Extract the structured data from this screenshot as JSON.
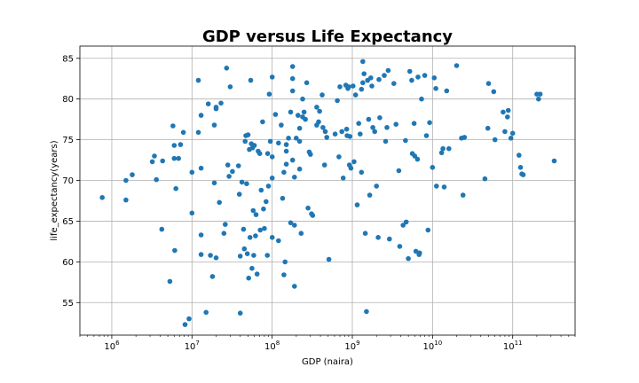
{
  "chart_data": {
    "type": "scatter",
    "title": "GDP versus Life Expectancy",
    "xlabel": "GDP (naira)",
    "ylabel": "life_expectancy(years)",
    "xscale": "log",
    "xlim": [
      400000,
      600000000000
    ],
    "ylim": [
      51,
      86.5
    ],
    "x_ticks": [
      {
        "value": 1000000,
        "base": "10",
        "exp": "6"
      },
      {
        "value": 10000000,
        "base": "10",
        "exp": "7"
      },
      {
        "value": 100000000,
        "base": "10",
        "exp": "8"
      },
      {
        "value": 1000000000,
        "base": "10",
        "exp": "9"
      },
      {
        "value": 10000000000,
        "base": "10",
        "exp": "10"
      },
      {
        "value": 100000000000,
        "base": "10",
        "exp": "11"
      }
    ],
    "y_ticks": [
      55,
      60,
      65,
      70,
      75,
      80,
      85
    ],
    "grid": true,
    "marker_color": "#1f77b4",
    "points": [
      [
        760000.0,
        67.9
      ],
      [
        1500000.0,
        70.0
      ],
      [
        1500000.0,
        67.6
      ],
      [
        1800000.0,
        70.7
      ],
      [
        3200000.0,
        72.3
      ],
      [
        3400000.0,
        73.0
      ],
      [
        3600000.0,
        70.1
      ],
      [
        4200000.0,
        64.0
      ],
      [
        4300000.0,
        72.4
      ],
      [
        5300000.0,
        57.6
      ],
      [
        5800000.0,
        76.7
      ],
      [
        6000000.0,
        74.3
      ],
      [
        6000000.0,
        72.7
      ],
      [
        6100000.0,
        61.4
      ],
      [
        6300000.0,
        69.0
      ],
      [
        6800000.0,
        72.7
      ],
      [
        7200000.0,
        74.4
      ],
      [
        7800000.0,
        75.9
      ],
      [
        8200000.0,
        52.3
      ],
      [
        9200000.0,
        53.0
      ],
      [
        10000000.0,
        71.0
      ],
      [
        10000000.0,
        66.0
      ],
      [
        12000000.0,
        82.3
      ],
      [
        12000000.0,
        75.9
      ],
      [
        13000000.0,
        78.0
      ],
      [
        13000000.0,
        71.5
      ],
      [
        13000000.0,
        63.3
      ],
      [
        13000000.0,
        60.9
      ],
      [
        15000000.0,
        53.8
      ],
      [
        16000000.0,
        79.4
      ],
      [
        17000000.0,
        60.8
      ],
      [
        18000000.0,
        58.2
      ],
      [
        19000000.0,
        69.7
      ],
      [
        19000000.0,
        76.8
      ],
      [
        20000000.0,
        78.8
      ],
      [
        20000000.0,
        79.0
      ],
      [
        20000000.0,
        60.5
      ],
      [
        22000000.0,
        67.3
      ],
      [
        23000000.0,
        79.5
      ],
      [
        25000000.0,
        63.5
      ],
      [
        26000000.0,
        64.6
      ],
      [
        27000000.0,
        83.8
      ],
      [
        28000000.0,
        71.9
      ],
      [
        29000000.0,
        70.5
      ],
      [
        30000000.0,
        81.5
      ],
      [
        32000000.0,
        71.1
      ],
      [
        38000000.0,
        71.8
      ],
      [
        39000000.0,
        68.3
      ],
      [
        40000000.0,
        53.7
      ],
      [
        40000000.0,
        60.7
      ],
      [
        42000000.0,
        69.8
      ],
      [
        44000000.0,
        64.0
      ],
      [
        45000000.0,
        61.6
      ],
      [
        46000000.0,
        74.8
      ],
      [
        47000000.0,
        75.5
      ],
      [
        48000000.0,
        69.6
      ],
      [
        49000000.0,
        61.0
      ],
      [
        50000000.0,
        75.6
      ],
      [
        51000000.0,
        58.0
      ],
      [
        52000000.0,
        73.8
      ],
      [
        53000000.0,
        63.0
      ],
      [
        54000000.0,
        82.3
      ],
      [
        55000000.0,
        74.5
      ],
      [
        56000000.0,
        59.2
      ],
      [
        57000000.0,
        74.0
      ],
      [
        58000000.0,
        66.3
      ],
      [
        59000000.0,
        60.8
      ],
      [
        60000000.0,
        74.3
      ],
      [
        62000000.0,
        63.2
      ],
      [
        63000000.0,
        65.8
      ],
      [
        65000000.0,
        58.5
      ],
      [
        67000000.0,
        73.6
      ],
      [
        70000000.0,
        73.3
      ],
      [
        71000000.0,
        63.9
      ],
      [
        73000000.0,
        68.8
      ],
      [
        76000000.0,
        77.2
      ],
      [
        78000000.0,
        66.5
      ],
      [
        80000000.0,
        64.1
      ],
      [
        84000000.0,
        67.4
      ],
      [
        87000000.0,
        60.8
      ],
      [
        88000000.0,
        73.3
      ],
      [
        90000000.0,
        69.3
      ],
      [
        92000000.0,
        80.6
      ],
      [
        95000000.0,
        74.8
      ],
      [
        100000000.0,
        82.7
      ],
      [
        100000000.0,
        70.3
      ],
      [
        100000000.0,
        63.0
      ],
      [
        100000000.0,
        72.9
      ],
      [
        110000000.0,
        78.1
      ],
      [
        120000000.0,
        74.6
      ],
      [
        120000000.0,
        62.6
      ],
      [
        130000000.0,
        76.8
      ],
      [
        135000000.0,
        67.8
      ],
      [
        140000000.0,
        58.4
      ],
      [
        140000000.0,
        71.0
      ],
      [
        145000000.0,
        60.0
      ],
      [
        150000000.0,
        73.6
      ],
      [
        150000000.0,
        72.0
      ],
      [
        150000000.0,
        74.4
      ],
      [
        160000000.0,
        75.2
      ],
      [
        170000000.0,
        78.4
      ],
      [
        170000000.0,
        64.8
      ],
      [
        180000000.0,
        84.0
      ],
      [
        180000000.0,
        82.5
      ],
      [
        180000000.0,
        81.0
      ],
      [
        180000000.0,
        72.5
      ],
      [
        190000000.0,
        57.0
      ],
      [
        190000000.0,
        70.4
      ],
      [
        190000000.0,
        64.5
      ],
      [
        200000000.0,
        75.2
      ],
      [
        210000000.0,
        78.0
      ],
      [
        220000000.0,
        76.4
      ],
      [
        220000000.0,
        74.8
      ],
      [
        220000000.0,
        71.4
      ],
      [
        230000000.0,
        63.5
      ],
      [
        240000000.0,
        80.0
      ],
      [
        240000000.0,
        77.8
      ],
      [
        250000000.0,
        78.4
      ],
      [
        260000000.0,
        77.5
      ],
      [
        270000000.0,
        82.0
      ],
      [
        280000000.0,
        66.6
      ],
      [
        290000000.0,
        73.5
      ],
      [
        300000000.0,
        73.2
      ],
      [
        310000000.0,
        65.9
      ],
      [
        320000000.0,
        65.7
      ],
      [
        360000000.0,
        79.0
      ],
      [
        360000000.0,
        76.8
      ],
      [
        380000000.0,
        77.2
      ],
      [
        390000000.0,
        78.5
      ],
      [
        420000000.0,
        80.5
      ],
      [
        430000000.0,
        76.5
      ],
      [
        450000000.0,
        71.9
      ],
      [
        460000000.0,
        76.0
      ],
      [
        480000000.0,
        75.3
      ],
      [
        510000000.0,
        60.3
      ],
      [
        610000000.0,
        75.7
      ],
      [
        650000000.0,
        79.8
      ],
      [
        680000000.0,
        72.9
      ],
      [
        700000000.0,
        81.5
      ],
      [
        740000000.0,
        76.0
      ],
      [
        770000000.0,
        70.3
      ],
      [
        830000000.0,
        81.7
      ],
      [
        850000000.0,
        76.3
      ],
      [
        860000000.0,
        75.5
      ],
      [
        880000000.0,
        81.3
      ],
      [
        900000000.0,
        81.5
      ],
      [
        920000000.0,
        71.9
      ],
      [
        930000000.0,
        75.4
      ],
      [
        960000000.0,
        71.5
      ],
      [
        1020000000.0,
        81.6
      ],
      [
        1050000000.0,
        72.3
      ],
      [
        1100000000.0,
        80.5
      ],
      [
        1150000000.0,
        67.0
      ],
      [
        1200000000.0,
        77.0
      ],
      [
        1250000000.0,
        75.7
      ],
      [
        1300000000.0,
        81.2
      ],
      [
        1300000000.0,
        71.0
      ],
      [
        1350000000.0,
        84.6
      ],
      [
        1350000000.0,
        82.0
      ],
      [
        1400000000.0,
        83.1
      ],
      [
        1450000000.0,
        63.5
      ],
      [
        1500000000.0,
        53.9
      ],
      [
        1550000000.0,
        82.3
      ],
      [
        1600000000.0,
        77.5
      ],
      [
        1650000000.0,
        68.2
      ],
      [
        1700000000.0,
        82.6
      ],
      [
        1750000000.0,
        81.6
      ],
      [
        1800000000.0,
        76.5
      ],
      [
        1900000000.0,
        76.0
      ],
      [
        2000000000.0,
        69.3
      ],
      [
        2100000000.0,
        63.0
      ],
      [
        2150000000.0,
        82.4
      ],
      [
        2200000000.0,
        77.7
      ],
      [
        2500000000.0,
        82.9
      ],
      [
        2600000000.0,
        74.8
      ],
      [
        2700000000.0,
        76.5
      ],
      [
        2800000000.0,
        83.5
      ],
      [
        2900000000.0,
        62.8
      ],
      [
        3300000000.0,
        81.9
      ],
      [
        3500000000.0,
        76.9
      ],
      [
        3800000000.0,
        71.2
      ],
      [
        3900000000.0,
        61.9
      ],
      [
        4300000000.0,
        64.5
      ],
      [
        4600000000.0,
        74.9
      ],
      [
        4700000000.0,
        64.9
      ],
      [
        5000000000.0,
        60.4
      ],
      [
        5200000000.0,
        83.4
      ],
      [
        5500000000.0,
        82.3
      ],
      [
        5600000000.0,
        73.3
      ],
      [
        5900000000.0,
        77.0
      ],
      [
        6000000000.0,
        73.0
      ],
      [
        6200000000.0,
        61.3
      ],
      [
        6500000000.0,
        72.6
      ],
      [
        6600000000.0,
        82.7
      ],
      [
        6800000000.0,
        60.9
      ],
      [
        6900000000.0,
        61.1
      ],
      [
        7300000000.0,
        80.0
      ],
      [
        8000000000.0,
        82.9
      ],
      [
        8400000000.0,
        75.5
      ],
      [
        8800000000.0,
        63.9
      ],
      [
        9200000000.0,
        77.1
      ],
      [
        10000000000.0,
        71.6
      ],
      [
        10500000000.0,
        82.6
      ],
      [
        11000000000.0,
        81.3
      ],
      [
        11200000000.0,
        69.3
      ],
      [
        13000000000.0,
        73.4
      ],
      [
        13500000000.0,
        73.9
      ],
      [
        14000000000.0,
        69.2
      ],
      [
        15000000000.0,
        81.0
      ],
      [
        16000000000.0,
        73.9
      ],
      [
        20000000000.0,
        84.1
      ],
      [
        23000000000.0,
        75.2
      ],
      [
        24000000000.0,
        68.2
      ],
      [
        25000000000.0,
        75.3
      ],
      [
        45000000000.0,
        70.2
      ],
      [
        49000000000.0,
        76.4
      ],
      [
        50000000000.0,
        81.9
      ],
      [
        58000000000.0,
        80.9
      ],
      [
        60000000000.0,
        75.0
      ],
      [
        76000000000.0,
        78.4
      ],
      [
        80000000000.0,
        76.0
      ],
      [
        86000000000.0,
        77.8
      ],
      [
        88000000000.0,
        78.6
      ],
      [
        95000000000.0,
        75.2
      ],
      [
        100000000000.0,
        75.8
      ],
      [
        120000000000.0,
        73.1
      ],
      [
        125000000000.0,
        71.6
      ],
      [
        130000000000.0,
        70.8
      ],
      [
        135000000000.0,
        70.7
      ],
      [
        200000000000.0,
        80.6
      ],
      [
        210000000000.0,
        80.0
      ],
      [
        220000000000.0,
        80.6
      ],
      [
        330000000000.0,
        72.4
      ]
    ]
  }
}
